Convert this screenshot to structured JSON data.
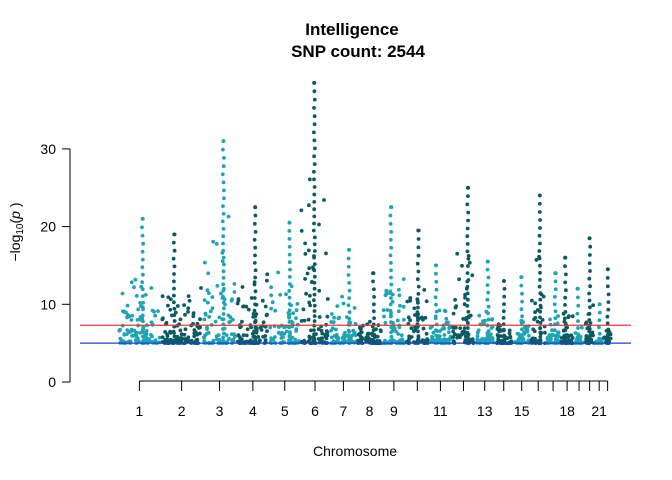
{
  "chart_data": {
    "type": "scatter",
    "title": "Intelligence",
    "subtitle": "SNP count: 2544",
    "xlabel": "Chromosome",
    "ylabel": "-log10(p)",
    "ylim": [
      0,
      31
    ],
    "yticks": [
      0,
      10,
      20,
      30
    ],
    "x_tick_labels": [
      "1",
      "2",
      "3",
      "4",
      "5",
      "6",
      "7",
      "8",
      "9",
      "11",
      "13",
      "15",
      "18",
      "21"
    ],
    "chromosomes": [
      "1",
      "2",
      "3",
      "4",
      "5",
      "6",
      "7",
      "8",
      "9",
      "10",
      "11",
      "12",
      "13",
      "14",
      "15",
      "16",
      "17",
      "18",
      "19",
      "20",
      "21",
      "22"
    ],
    "chromosome_lengths_mb": [
      249,
      242,
      198,
      190,
      181,
      171,
      159,
      145,
      138,
      134,
      135,
      133,
      114,
      107,
      102,
      90,
      83,
      80,
      59,
      64,
      47,
      51
    ],
    "series_colors": [
      "#1fa4b4",
      "#0c5b62"
    ],
    "reference_lines": [
      {
        "value": 7.3,
        "color": "#e53935"
      },
      {
        "value": 5.0,
        "color": "#1e3fd9"
      }
    ],
    "peaks": [
      {
        "chr": "1",
        "max": 21.0
      },
      {
        "chr": "2",
        "max": 19.0
      },
      {
        "chr": "3",
        "max": 31.0
      },
      {
        "chr": "4",
        "max": 22.5
      },
      {
        "chr": "5",
        "max": 20.5
      },
      {
        "chr": "6",
        "max": 38.5
      },
      {
        "chr": "7",
        "max": 17.0
      },
      {
        "chr": "8",
        "max": 14.0
      },
      {
        "chr": "9",
        "max": 22.5
      },
      {
        "chr": "10",
        "max": 19.5
      },
      {
        "chr": "11",
        "max": 15.0
      },
      {
        "chr": "12",
        "max": 25.0
      },
      {
        "chr": "13",
        "max": 15.5
      },
      {
        "chr": "14",
        "max": 13.0
      },
      {
        "chr": "15",
        "max": 13.5
      },
      {
        "chr": "16",
        "max": 24.0
      },
      {
        "chr": "17",
        "max": 14.0
      },
      {
        "chr": "18",
        "max": 16.0
      },
      {
        "chr": "19",
        "max": 12.0
      },
      {
        "chr": "20",
        "max": 18.5
      },
      {
        "chr": "21",
        "max": 10.0
      },
      {
        "chr": "22",
        "max": 14.5
      }
    ]
  }
}
